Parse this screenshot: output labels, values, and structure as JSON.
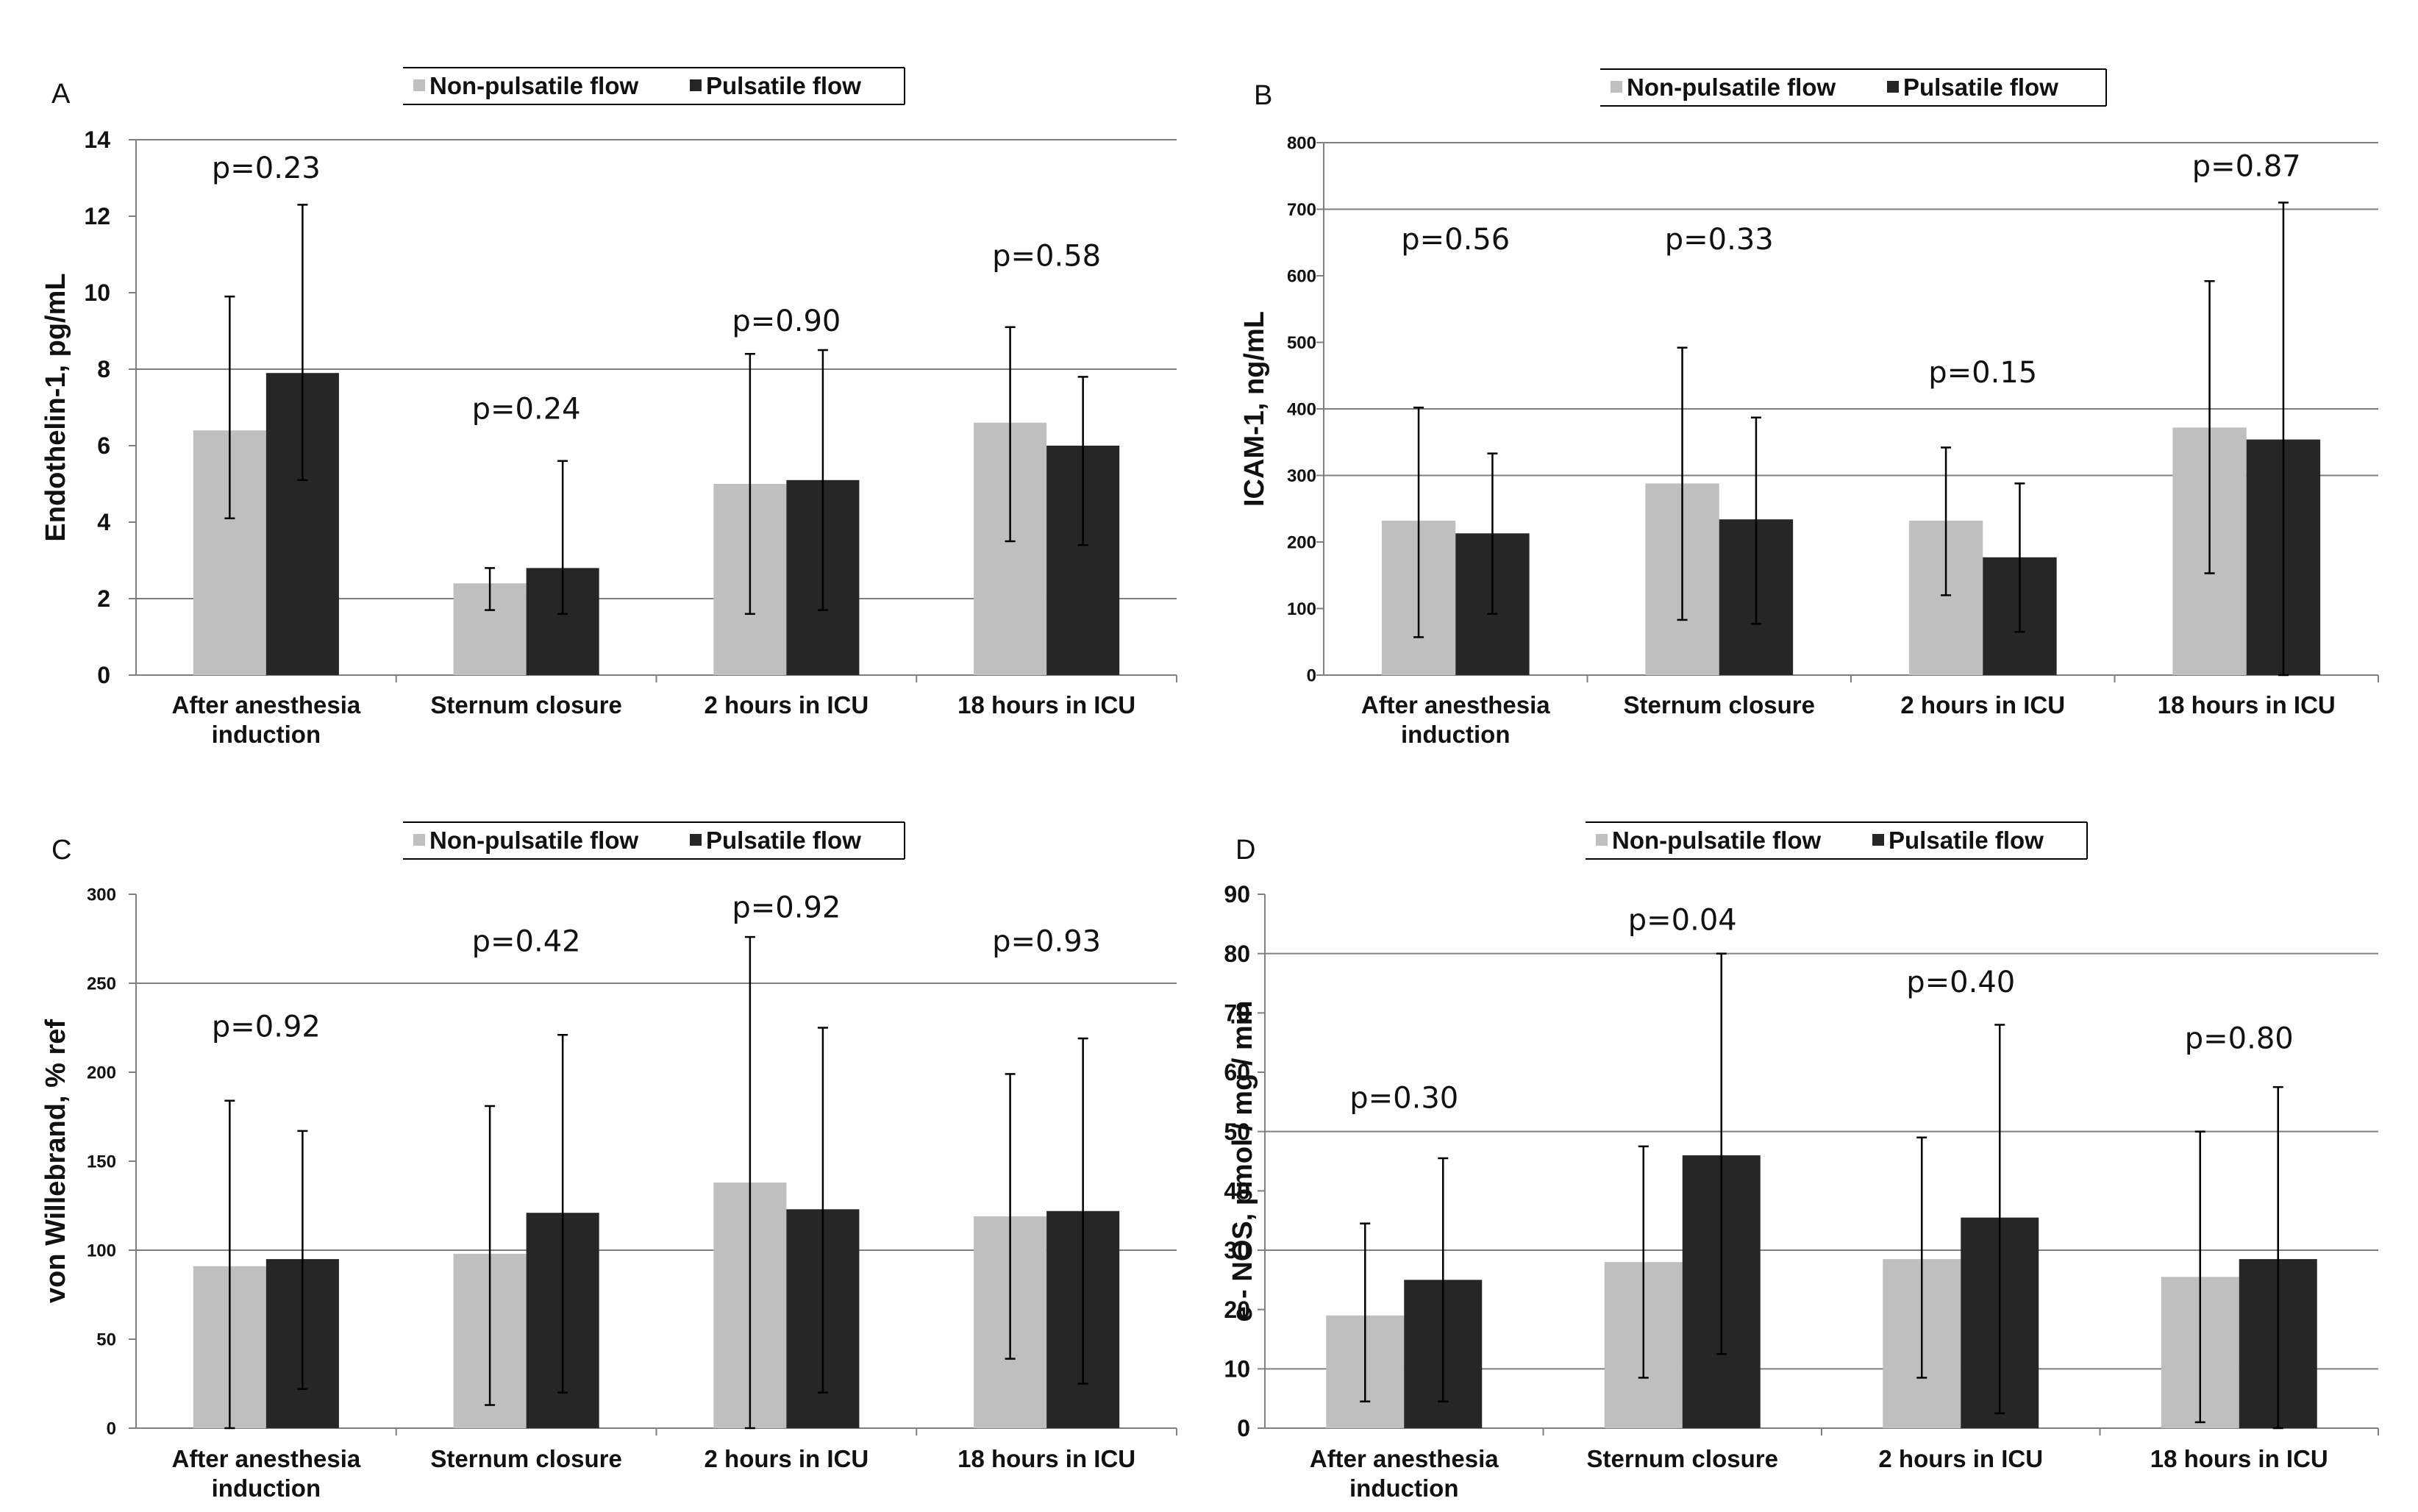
{
  "colors": {
    "non_pulsatile": "#bfbfbf",
    "pulsatile": "#262626",
    "axis": "#7f7f7f",
    "grid": "#7f7f7f"
  },
  "chart_data": [
    {
      "type": "bar",
      "panel": "A",
      "ylabel": "Endothelin-1, pg/mL",
      "ylim": [
        0,
        14
      ],
      "yticks": [
        0,
        2,
        4,
        6,
        8,
        10,
        12,
        14
      ],
      "gridlines": [
        2,
        8,
        14
      ],
      "categories": [
        "After anesthesia induction",
        "Sternum closure",
        "2 hours in ICU",
        "18 hours in ICU"
      ],
      "legend": [
        "Non-pulsatile flow",
        "Pulsatile flow"
      ],
      "series": [
        {
          "name": "Non-pulsatile flow",
          "values": [
            6.4,
            2.4,
            5.0,
            6.6
          ],
          "err_low": [
            4.1,
            1.7,
            1.6,
            3.5
          ],
          "err_high": [
            9.9,
            2.8,
            8.4,
            9.1
          ]
        },
        {
          "name": "Pulsatile flow",
          "values": [
            7.9,
            2.8,
            5.1,
            6.0
          ],
          "err_low": [
            5.1,
            1.6,
            1.7,
            3.4
          ],
          "err_high": [
            12.3,
            5.6,
            8.5,
            7.8
          ]
        }
      ],
      "annotations": [
        {
          "text": "p=0.23",
          "y": 13.0
        },
        {
          "text": "p=0.24",
          "y": 6.7
        },
        {
          "text": "p=0.90",
          "y": 9.0
        },
        {
          "text": "p=0.58",
          "y": 10.7
        }
      ]
    },
    {
      "type": "bar",
      "panel": "B",
      "ylabel": "ICAM-1, ng/mL",
      "ylim": [
        0,
        800
      ],
      "yticks": [
        0,
        100,
        200,
        300,
        400,
        500,
        600,
        700,
        800
      ],
      "gridlines": [
        300,
        400,
        700,
        800
      ],
      "categories": [
        "After anesthesia induction",
        "Sternum closure",
        "2 hours in ICU",
        "18 hours in ICU"
      ],
      "legend": [
        "Non-pulsatile flow",
        "Pulsatile flow"
      ],
      "series": [
        {
          "name": "Non-pulsatile flow",
          "values": [
            232,
            288,
            232,
            372
          ],
          "err_low": [
            57,
            83,
            120,
            153
          ],
          "err_high": [
            402,
            492,
            342,
            592
          ]
        },
        {
          "name": "Pulsatile flow",
          "values": [
            213,
            234,
            177,
            354
          ],
          "err_low": [
            92,
            77,
            65,
            0
          ],
          "err_high": [
            333,
            387,
            288,
            710
          ]
        }
      ],
      "annotations": [
        {
          "text": "p=0.56",
          "y": 640
        },
        {
          "text": "p=0.33",
          "y": 640
        },
        {
          "text": "p=0.15",
          "y": 440
        },
        {
          "text": "p=0.87",
          "y": 750
        }
      ]
    },
    {
      "type": "bar",
      "panel": "C",
      "ylabel": "von Willebrand, % ref",
      "ylim": [
        0,
        300
      ],
      "yticks": [
        0,
        50,
        100,
        150,
        200,
        250,
        300
      ],
      "gridlines": [
        100,
        250
      ],
      "categories": [
        "After anesthesia induction",
        "Sternum closure",
        "2 hours in ICU",
        "18 hours in ICU"
      ],
      "legend": [
        "Non-pulsatile flow",
        "Pulsatile flow"
      ],
      "series": [
        {
          "name": "Non-pulsatile flow",
          "values": [
            91,
            98,
            138,
            119
          ],
          "err_low": [
            0,
            13,
            0,
            39
          ],
          "err_high": [
            184,
            181,
            276,
            199
          ]
        },
        {
          "name": "Pulsatile flow",
          "values": [
            95,
            121,
            123,
            122
          ],
          "err_low": [
            22,
            20,
            20,
            25
          ],
          "err_high": [
            167,
            221,
            225,
            219
          ]
        }
      ],
      "annotations": [
        {
          "text": "p=0.92",
          "y": 220
        },
        {
          "text": "p=0.42",
          "y": 268
        },
        {
          "text": "p=0.92",
          "y": 287
        },
        {
          "text": "p=0.93",
          "y": 268
        }
      ]
    },
    {
      "type": "bar",
      "panel": "D",
      "ylabel": "e - NOS, pmol / mg / min",
      "ylim": [
        0,
        90
      ],
      "yticks": [
        0,
        10,
        20,
        30,
        40,
        50,
        60,
        70,
        80,
        90
      ],
      "gridlines": [
        10,
        30,
        50,
        80
      ],
      "categories": [
        "After anesthesia induction",
        "Sternum closure",
        "2 hours in ICU",
        "18 hours in ICU"
      ],
      "legend": [
        "Non-pulsatile flow",
        "Pulsatile flow"
      ],
      "series": [
        {
          "name": "Non-pulsatile flow",
          "values": [
            19,
            28,
            28.5,
            25.5
          ],
          "err_low": [
            4.5,
            8.5,
            8.5,
            1
          ],
          "err_high": [
            34.5,
            47.5,
            49,
            50
          ]
        },
        {
          "name": "Pulsatile flow",
          "values": [
            25,
            46,
            35.5,
            28.5
          ],
          "err_low": [
            4.5,
            12.5,
            2.5,
            0
          ],
          "err_high": [
            45.5,
            80,
            68,
            57.5
          ]
        }
      ],
      "annotations": [
        {
          "text": "p=0.30",
          "y": 54
        },
        {
          "text": "p=0.04",
          "y": 84
        },
        {
          "text": "p=0.40",
          "y": 73.5
        },
        {
          "text": "p=0.80",
          "y": 64
        }
      ]
    }
  ]
}
